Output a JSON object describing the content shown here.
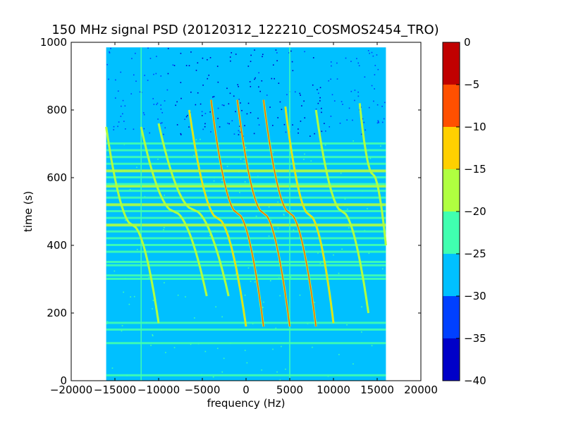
{
  "chart_data": {
    "type": "heatmap",
    "title": "150 MHz signal PSD (20120312_122210_COSMOS2454_TRO)",
    "xlabel": "frequency (Hz)",
    "ylabel": "time (s)",
    "xlim": [
      -20000,
      20000
    ],
    "ylim": [
      0,
      1000
    ],
    "xticks": [
      -20000,
      -15000,
      -10000,
      -5000,
      0,
      5000,
      10000,
      15000,
      20000
    ],
    "yticks": [
      0,
      200,
      400,
      600,
      800,
      1000
    ],
    "data_extent": {
      "x": [
        -16000,
        16000
      ],
      "y": [
        0,
        985
      ]
    },
    "background_level_color": "#00c0ff",
    "colorbar": {
      "min": -40,
      "max": 0,
      "ticks": [
        0,
        -5,
        -10,
        -15,
        -20,
        -25,
        -30,
        -35,
        -40
      ],
      "levels": [
        {
          "from": -40,
          "to": -35,
          "color": "#0000c8"
        },
        {
          "from": -35,
          "to": -30,
          "color": "#0040ff"
        },
        {
          "from": -30,
          "to": -25,
          "color": "#00c0ff"
        },
        {
          "from": -25,
          "to": -20,
          "color": "#40ffb0"
        },
        {
          "from": -20,
          "to": -15,
          "color": "#b0ff40"
        },
        {
          "from": -15,
          "to": -10,
          "color": "#ffd000"
        },
        {
          "from": -10,
          "to": -5,
          "color": "#ff5000"
        },
        {
          "from": -5,
          "to": 0,
          "color": "#c00000"
        }
      ]
    },
    "horizontal_bands_s": [
      15,
      110,
      150,
      170,
      300,
      310,
      340,
      350,
      380,
      400,
      420,
      440,
      460,
      480,
      500,
      520,
      540,
      560,
      575,
      580,
      600,
      620,
      640,
      660,
      680,
      700
    ],
    "vertical_lines_hz": [
      -12000,
      5000
    ],
    "signal_tracks": [
      {
        "x_start": -10000,
        "x_end": -16000,
        "t_start": 170,
        "t_end": 750,
        "peak_level": -17
      },
      {
        "x_start": -4500,
        "x_end": -12000,
        "t_start": 250,
        "t_end": 750,
        "peak_level": -17
      },
      {
        "x_start": -2000,
        "x_end": -10000,
        "t_start": 250,
        "t_end": 760,
        "peak_level": -15
      },
      {
        "x_start": 0,
        "x_end": -6500,
        "t_start": 160,
        "t_end": 800,
        "peak_level": -12
      },
      {
        "x_start": 2000,
        "x_end": -4000,
        "t_start": 160,
        "t_end": 830,
        "peak_level": -8
      },
      {
        "x_start": 5000,
        "x_end": -1000,
        "t_start": 160,
        "t_end": 830,
        "peak_level": -5
      },
      {
        "x_start": 8000,
        "x_end": 2000,
        "t_start": 160,
        "t_end": 830,
        "peak_level": -8
      },
      {
        "x_start": 10000,
        "x_end": 4500,
        "t_start": 170,
        "t_end": 810,
        "peak_level": -12
      },
      {
        "x_start": 14000,
        "x_end": 8000,
        "t_start": 200,
        "t_end": 800,
        "peak_level": -15
      },
      {
        "x_start": 16000,
        "x_end": 13000,
        "t_start": 400,
        "t_end": 820,
        "peak_level": -17
      }
    ]
  }
}
